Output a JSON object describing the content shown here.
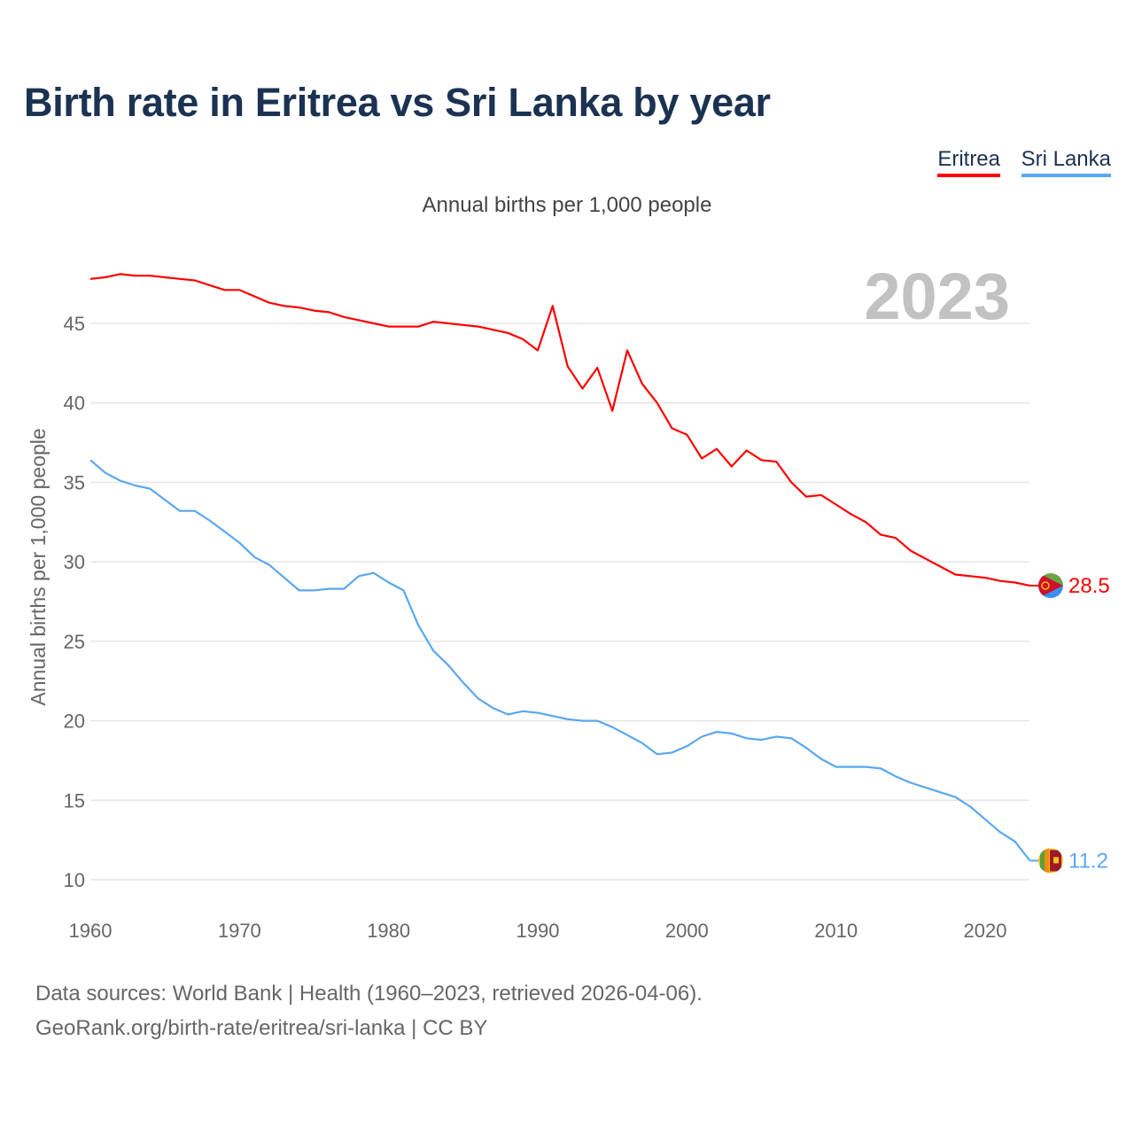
{
  "title": "Birth rate in Eritrea vs Sri Lanka by year",
  "legend": [
    "Eritrea",
    "Sri Lanka"
  ],
  "subtitle": "Annual births per 1,000 people",
  "year_badge": "2023",
  "footer": {
    "source": "Data sources: World Bank | Health (1960–2023, retrieved 2026-04-06).",
    "url": "GeoRank.org/birth-rate/eritrea/sri-lanka | CC BY"
  },
  "colors": {
    "eritrea": "#ff0000",
    "sri_lanka": "#5aa7f0"
  },
  "chart_data": {
    "type": "line",
    "title": "Birth rate in Eritrea vs Sri Lanka by year",
    "xlabel": "",
    "ylabel": "Annual births per 1,000 people",
    "xlim": [
      1960,
      2023
    ],
    "ylim": [
      8.5,
      49
    ],
    "x_ticks": [
      1960,
      1970,
      1980,
      1990,
      2000,
      2010,
      2020
    ],
    "y_ticks": [
      10,
      15,
      20,
      25,
      30,
      35,
      40,
      45
    ],
    "grid": true,
    "legend_position": "top-right",
    "x": [
      1960,
      1961,
      1962,
      1963,
      1964,
      1965,
      1966,
      1967,
      1968,
      1969,
      1970,
      1971,
      1972,
      1973,
      1974,
      1975,
      1976,
      1977,
      1978,
      1979,
      1980,
      1981,
      1982,
      1983,
      1984,
      1985,
      1986,
      1987,
      1988,
      1989,
      1990,
      1991,
      1992,
      1993,
      1994,
      1995,
      1996,
      1997,
      1998,
      1999,
      2000,
      2001,
      2002,
      2003,
      2004,
      2005,
      2006,
      2007,
      2008,
      2009,
      2010,
      2011,
      2012,
      2013,
      2014,
      2015,
      2016,
      2017,
      2018,
      2019,
      2020,
      2021,
      2022,
      2023
    ],
    "series": [
      {
        "name": "Eritrea",
        "end_label": "28.5",
        "values": [
          47.8,
          47.9,
          48.1,
          48.0,
          48.0,
          47.9,
          47.8,
          47.7,
          47.4,
          47.1,
          47.1,
          46.7,
          46.3,
          46.1,
          46.0,
          45.8,
          45.7,
          45.4,
          45.2,
          45.0,
          44.8,
          44.8,
          44.8,
          45.1,
          45.0,
          44.9,
          44.8,
          44.6,
          44.4,
          44.0,
          43.3,
          46.1,
          42.3,
          40.9,
          42.2,
          39.5,
          43.3,
          41.2,
          40.0,
          38.4,
          38.0,
          36.5,
          37.1,
          36.0,
          37.0,
          36.4,
          36.3,
          35.0,
          34.1,
          34.2,
          33.6,
          33.0,
          32.5,
          31.7,
          31.5,
          30.7,
          30.2,
          29.7,
          29.2,
          29.1,
          29.0,
          28.8,
          28.7,
          28.5
        ]
      },
      {
        "name": "Sri Lanka",
        "end_label": "11.2",
        "values": [
          36.4,
          35.6,
          35.1,
          34.8,
          34.6,
          33.9,
          33.2,
          33.2,
          32.6,
          31.9,
          31.2,
          30.3,
          29.8,
          29.0,
          28.2,
          28.2,
          28.3,
          28.3,
          29.1,
          29.3,
          28.7,
          28.2,
          26.0,
          24.4,
          23.5,
          22.4,
          21.4,
          20.8,
          20.4,
          20.6,
          20.5,
          20.3,
          20.1,
          20.0,
          20.0,
          19.6,
          19.1,
          18.6,
          17.9,
          18.0,
          18.4,
          19.0,
          19.3,
          19.2,
          18.9,
          18.8,
          19.0,
          18.9,
          18.3,
          17.6,
          17.1,
          17.1,
          17.1,
          17.0,
          16.5,
          16.1,
          15.8,
          15.5,
          15.2,
          14.6,
          13.8,
          13.0,
          12.4,
          11.2
        ]
      }
    ]
  }
}
